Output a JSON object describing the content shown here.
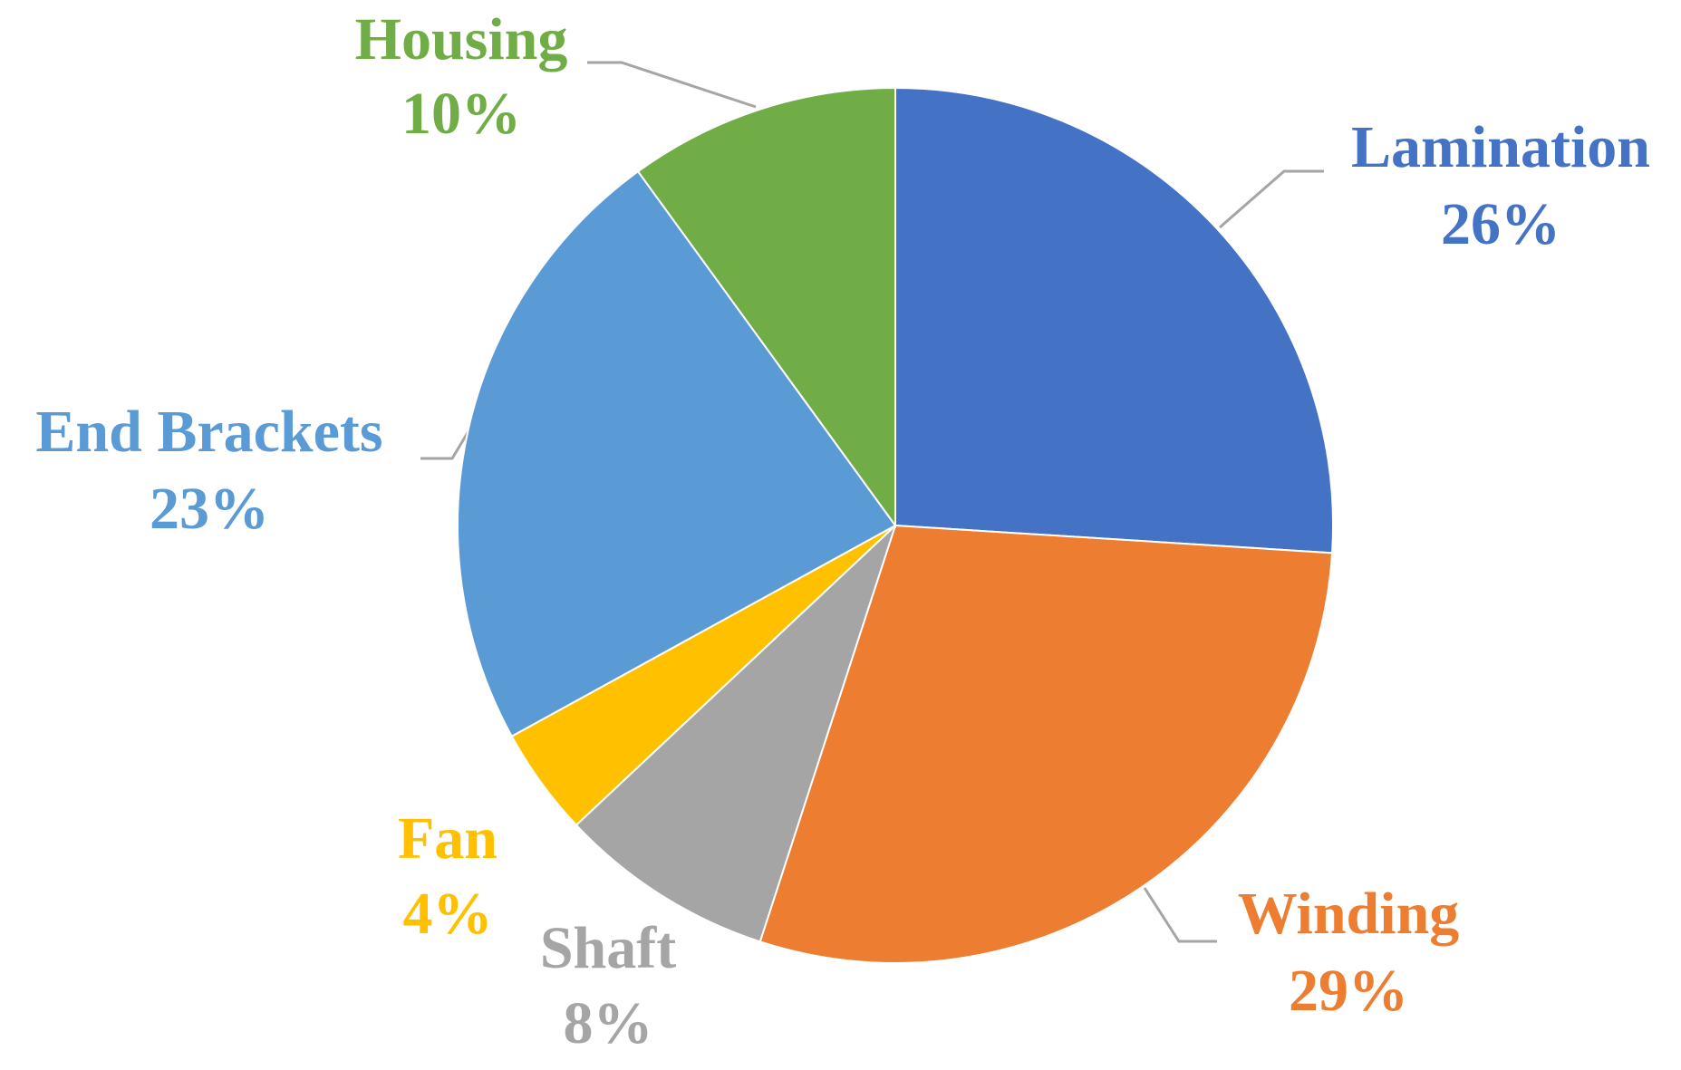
{
  "chart_data": {
    "type": "pie",
    "categories": [
      "Lamination",
      "Winding",
      "Shaft",
      "Fan",
      "End Brackets",
      "Housing"
    ],
    "values": [
      26,
      29,
      8,
      4,
      23,
      10
    ],
    "value_labels": [
      "26%",
      "29%",
      "8%",
      "4%",
      "23%",
      "10%"
    ],
    "colors": [
      "#4472c4",
      "#ed7d31",
      "#a5a5a5",
      "#ffc000",
      "#5b9bd5",
      "#70ad47"
    ]
  }
}
